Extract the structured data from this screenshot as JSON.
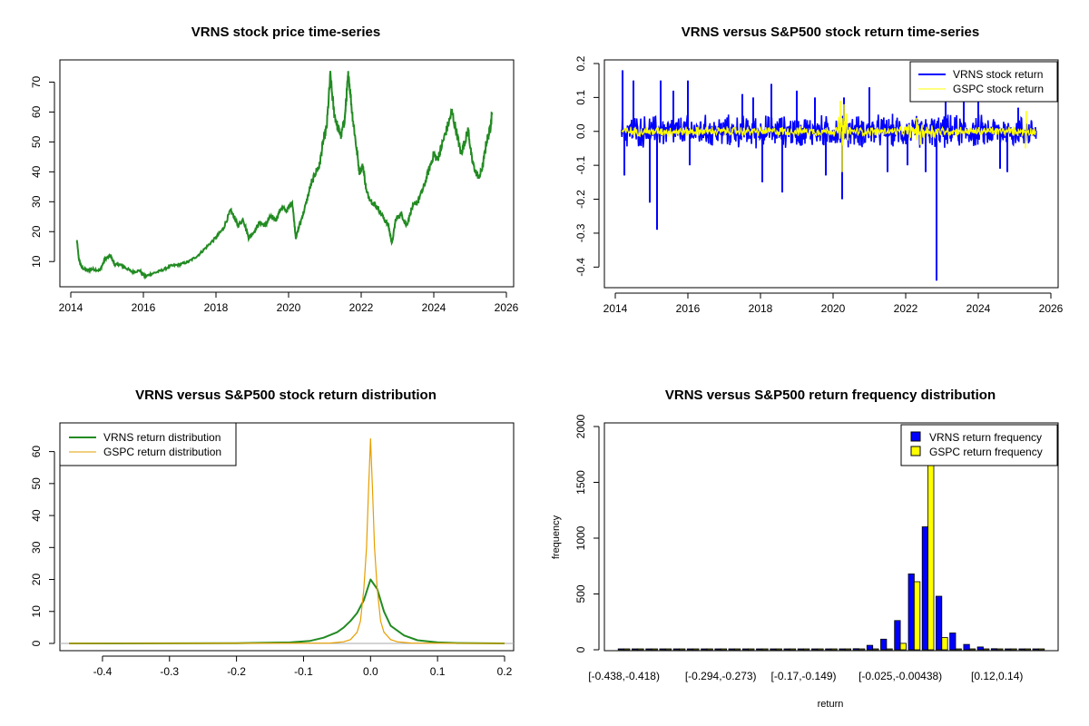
{
  "chart_data": [
    {
      "type": "line",
      "title": "VRNS stock price time-series",
      "xlabel": "",
      "ylabel": "",
      "xlim": [
        2014,
        2026
      ],
      "ylim": [
        4,
        75
      ],
      "x_ticks": [
        2014,
        2016,
        2018,
        2020,
        2022,
        2024,
        2026
      ],
      "y_ticks": [
        10,
        20,
        30,
        40,
        50,
        60,
        70
      ],
      "colors": {
        "price": "#228b22"
      },
      "series": [
        {
          "x": [
            2014.17,
            2014.22,
            2014.3,
            2014.45,
            2014.6,
            2014.8,
            2014.95,
            2015.1,
            2015.2,
            2015.35,
            2015.5,
            2015.7,
            2015.9,
            2016.05,
            2016.25,
            2016.5,
            2016.75,
            2017.0,
            2017.25,
            2017.5,
            2017.75,
            2018.0,
            2018.2,
            2018.4,
            2018.5,
            2018.6,
            2018.75,
            2018.9,
            2019.05,
            2019.2,
            2019.35,
            2019.5,
            2019.65,
            2019.8,
            2019.95,
            2020.1,
            2020.2,
            2020.3,
            2020.45,
            2020.6,
            2020.75,
            2020.85,
            2020.95,
            2021.05,
            2021.15,
            2021.25,
            2021.35,
            2021.45,
            2021.55,
            2021.6,
            2021.65,
            2021.75,
            2021.85,
            2021.95,
            2022.05,
            2022.15,
            2022.3,
            2022.45,
            2022.6,
            2022.75,
            2022.85,
            2022.95,
            2023.1,
            2023.25,
            2023.4,
            2023.55,
            2023.7,
            2023.85,
            2024.0,
            2024.1,
            2024.2,
            2024.35,
            2024.5,
            2024.65,
            2024.75,
            2024.85,
            2024.95,
            2025.05,
            2025.15,
            2025.25,
            2025.35,
            2025.45,
            2025.55,
            2025.6
          ],
          "y": [
            17,
            11,
            8,
            7,
            7.5,
            7,
            11,
            12,
            9,
            9,
            8,
            6.5,
            7,
            5,
            6,
            7,
            8.5,
            9,
            10,
            12,
            15,
            18,
            21,
            27,
            25,
            22,
            24,
            18,
            20,
            23,
            22,
            25,
            24,
            28,
            27,
            30,
            18,
            22,
            28,
            35,
            40,
            42,
            50,
            55,
            72,
            60,
            55,
            52,
            58,
            66,
            73,
            60,
            50,
            40,
            42,
            33,
            30,
            28,
            25,
            22,
            16,
            24,
            26,
            22,
            28,
            30,
            34,
            40,
            46,
            44,
            48,
            54,
            60,
            52,
            46,
            50,
            54,
            44,
            40,
            38,
            42,
            50,
            54,
            59
          ]
        }
      ]
    },
    {
      "type": "line",
      "title": "VRNS versus S&P500 stock return time-series",
      "xlabel": "",
      "ylabel": "",
      "xlim": [
        2014,
        2026
      ],
      "ylim": [
        -0.45,
        0.2
      ],
      "x_ticks": [
        2014,
        2016,
        2018,
        2020,
        2022,
        2024,
        2026
      ],
      "y_ticks": [
        -0.4,
        -0.3,
        -0.2,
        -0.1,
        0.0,
        0.1,
        0.2
      ],
      "y_tick_labels": [
        "-0.4",
        "-0.3",
        "-0.2",
        "-0.1",
        "0.0",
        "0.1",
        "0.2"
      ],
      "legend": "top-right",
      "series": [
        {
          "name": "VRNS stock return",
          "color": "#0000ff",
          "noise_amplitude": 0.04,
          "x_range": [
            2014.17,
            2025.6
          ],
          "spikes": [
            [
              2014.2,
              0.18
            ],
            [
              2014.25,
              -0.13
            ],
            [
              2014.5,
              0.15
            ],
            [
              2014.95,
              -0.21
            ],
            [
              2015.15,
              -0.29
            ],
            [
              2015.25,
              0.15
            ],
            [
              2015.6,
              0.12
            ],
            [
              2016.0,
              0.15
            ],
            [
              2016.05,
              -0.1
            ],
            [
              2017.5,
              0.11
            ],
            [
              2017.8,
              0.1
            ],
            [
              2018.05,
              -0.15
            ],
            [
              2018.3,
              0.14
            ],
            [
              2018.6,
              -0.18
            ],
            [
              2019.0,
              0.12
            ],
            [
              2019.5,
              0.1
            ],
            [
              2019.8,
              -0.13
            ],
            [
              2020.25,
              -0.2
            ],
            [
              2020.3,
              0.1
            ],
            [
              2021.0,
              0.13
            ],
            [
              2021.5,
              -0.12
            ],
            [
              2022.05,
              -0.1
            ],
            [
              2022.55,
              -0.12
            ],
            [
              2022.85,
              -0.44
            ],
            [
              2023.1,
              0.1
            ],
            [
              2023.6,
              0.1
            ],
            [
              2024.0,
              0.12
            ],
            [
              2024.6,
              -0.11
            ],
            [
              2024.8,
              -0.12
            ],
            [
              2025.1,
              0.07
            ]
          ]
        },
        {
          "name": "GSPC stock return",
          "color": "#ffff00",
          "noise_amplitude": 0.012,
          "x_range": [
            2014.17,
            2025.6
          ],
          "spikes": [
            [
              2020.2,
              0.09
            ],
            [
              2020.25,
              -0.12
            ],
            [
              2020.3,
              0.08
            ],
            [
              2022.3,
              0.04
            ],
            [
              2022.4,
              -0.04
            ],
            [
              2025.3,
              -0.05
            ],
            [
              2025.32,
              0.06
            ]
          ]
        }
      ]
    },
    {
      "type": "line",
      "title": "VRNS versus S&P500 stock return distribution",
      "xlabel": "",
      "ylabel": "",
      "xlim": [
        -0.45,
        0.2
      ],
      "ylim": [
        0,
        65
      ],
      "x_ticks": [
        -0.4,
        -0.3,
        -0.2,
        -0.1,
        0.0,
        0.1,
        0.2
      ],
      "x_tick_labels": [
        "-0.4",
        "-0.3",
        "-0.2",
        "-0.1",
        "0.0",
        "0.1",
        "0.2"
      ],
      "y_ticks": [
        0,
        10,
        20,
        30,
        40,
        50,
        60
      ],
      "legend": "top-left",
      "series": [
        {
          "name": "VRNS return distribution",
          "color": "#228b22",
          "x": [
            -0.45,
            -0.2,
            -0.12,
            -0.09,
            -0.07,
            -0.05,
            -0.04,
            -0.03,
            -0.02,
            -0.01,
            0.0,
            0.01,
            0.02,
            0.03,
            0.05,
            0.07,
            0.1,
            0.13,
            0.2
          ],
          "y": [
            0,
            0.05,
            0.3,
            0.8,
            1.8,
            3.5,
            5,
            7,
            9.5,
            13.5,
            20,
            17,
            10,
            5.5,
            2.5,
            1.0,
            0.3,
            0.1,
            0
          ]
        },
        {
          "name": "GSPC return distribution",
          "color": "#e69f00",
          "x": [
            -0.45,
            -0.06,
            -0.04,
            -0.03,
            -0.02,
            -0.015,
            -0.01,
            -0.006,
            -0.003,
            0.0,
            0.003,
            0.006,
            0.01,
            0.015,
            0.02,
            0.03,
            0.04,
            0.06,
            0.2
          ],
          "y": [
            0,
            0.1,
            0.5,
            1.2,
            3.5,
            7,
            17,
            30,
            48,
            64,
            48,
            30,
            17,
            7,
            3.5,
            1.2,
            0.5,
            0.1,
            0
          ]
        }
      ]
    },
    {
      "type": "bar",
      "title": "VRNS versus S&P500 return frequency distribution",
      "xlabel": "return",
      "ylabel": "frequency",
      "ylim": [
        0,
        2000
      ],
      "y_ticks": [
        0,
        500,
        1000,
        1500,
        2000
      ],
      "legend": "top-right",
      "bin_tick_labels": [
        {
          "bin": 0,
          "label": "[-0.438,-0.418)"
        },
        {
          "bin": 7,
          "label": "[-0.294,-0.273)"
        },
        {
          "bin": 13,
          "label": "[-0.17,-0.149)"
        },
        {
          "bin": 20,
          "label": "[-0.025,-0.00438)"
        },
        {
          "bin": 27,
          "label": "[0.12,0.14)"
        }
      ],
      "series": [
        {
          "name": "VRNS return frequency",
          "color": "#0000ff",
          "values": [
            1,
            0,
            0,
            0,
            0,
            0,
            0,
            1,
            0,
            0,
            0,
            0,
            2,
            2,
            3,
            5,
            8,
            10,
            40,
            95,
            262,
            680,
            1102,
            480,
            150,
            48,
            25,
            10,
            8,
            5,
            3
          ]
        },
        {
          "name": "GSPC return frequency",
          "color": "#ffff00",
          "values": [
            0,
            0,
            0,
            0,
            0,
            0,
            0,
            0,
            0,
            0,
            0,
            0,
            0,
            0,
            0,
            0,
            0,
            0,
            1,
            4,
            58,
            610,
            1950,
            110,
            5,
            1,
            0,
            0,
            0,
            0,
            0
          ]
        }
      ]
    }
  ]
}
